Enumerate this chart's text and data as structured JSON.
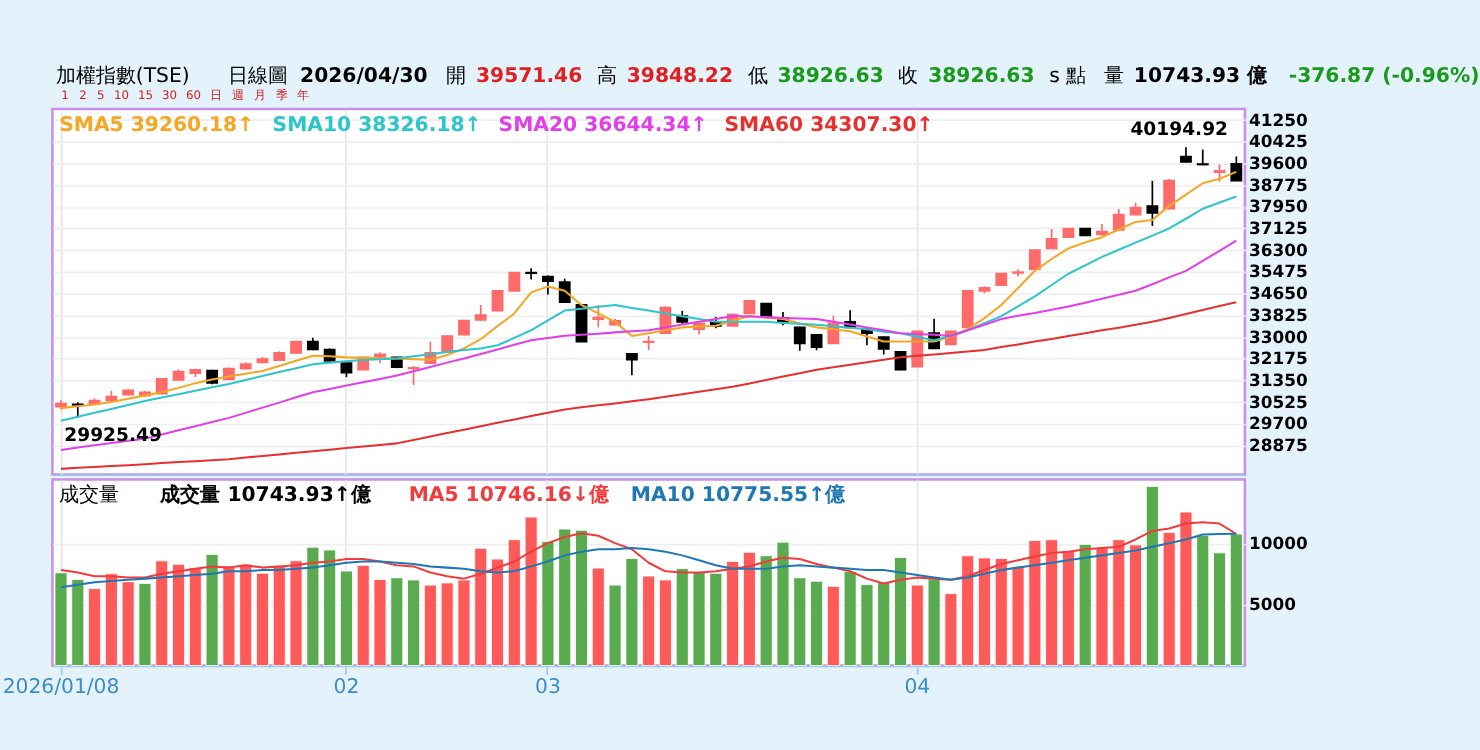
{
  "chart_data": [
    {
      "type": "candlestick",
      "title": "加權指數(TSE)",
      "annotations": [
        "日線圖",
        "2026/04/30",
        "開",
        "39571.46",
        "高",
        "39848.22",
        "低",
        "38926.63",
        "收",
        "38926.63",
        "s 點",
        "量",
        "10743.93 億",
        "-376.87 (-0.96%)",
        "1",
        "2",
        "5",
        "10",
        "15",
        "30",
        "60",
        "日",
        "週",
        "月",
        "季",
        "年",
        {
          "text": "29925.49",
          "y": 29925.49
        },
        {
          "text": "40194.92",
          "y": 40194.92
        }
      ],
      "categories": [
        "2026/01/08",
        null,
        null,
        null,
        null,
        null,
        null,
        null,
        null,
        null,
        null,
        null,
        null,
        null,
        null,
        null,
        null,
        "02",
        null,
        null,
        null,
        null,
        null,
        null,
        null,
        null,
        null,
        null,
        null,
        "03",
        null,
        null,
        null,
        null,
        null,
        null,
        null,
        null,
        null,
        null,
        null,
        null,
        null,
        null,
        null,
        null,
        null,
        null,
        null,
        null,
        null,
        "04",
        null,
        null,
        null,
        null,
        null,
        null,
        null,
        null,
        null,
        null,
        null,
        null,
        null,
        null,
        null,
        null,
        null,
        null,
        null
      ],
      "ohlc": [
        [
          30340,
          30580,
          30230,
          30450
        ],
        [
          30420,
          30500,
          29925.49,
          30400
        ],
        [
          30470,
          30650,
          30430,
          30570
        ],
        [
          30570,
          30940,
          30530,
          30720
        ],
        [
          30790,
          31000,
          30760,
          30960
        ],
        [
          30750,
          30930,
          30720,
          30880
        ],
        [
          30830,
          31420,
          30800,
          31390
        ],
        [
          31350,
          31760,
          31330,
          31670
        ],
        [
          31610,
          31780,
          31460,
          31740
        ],
        [
          31710,
          31740,
          31190,
          31240
        ],
        [
          31370,
          31820,
          31350,
          31780
        ],
        [
          31780,
          32020,
          31760,
          31950
        ],
        [
          32020,
          32230,
          31990,
          32140
        ],
        [
          32100,
          32440,
          32080,
          32380
        ],
        [
          32380,
          32830,
          32360,
          32810
        ],
        [
          32810,
          32960,
          32480,
          32510
        ],
        [
          32510,
          32550,
          32040,
          32080
        ],
        [
          31990,
          32000,
          31460,
          31630
        ],
        [
          31740,
          32230,
          31720,
          32210
        ],
        [
          32230,
          32400,
          31990,
          32320
        ],
        [
          32210,
          32230,
          31800,
          31840
        ],
        [
          31790,
          31880,
          31160,
          31810
        ],
        [
          31990,
          32810,
          31980,
          32380
        ],
        [
          32420,
          33040,
          32400,
          33020
        ],
        [
          33070,
          33630,
          33050,
          33610
        ],
        [
          33630,
          34200,
          33610,
          33820
        ],
        [
          33990,
          34760,
          33970,
          34740
        ],
        [
          34740,
          35450,
          34720,
          35430
        ],
        [
          35430,
          35600,
          35170,
          35410
        ],
        [
          35280,
          35320,
          34600,
          35110
        ],
        [
          35070,
          35200,
          34290,
          34310
        ],
        [
          34210,
          34230,
          32800,
          32810
        ],
        [
          33660,
          34200,
          33350,
          33720
        ],
        [
          33450,
          33680,
          33430,
          33600
        ],
        [
          32340,
          32360,
          31530,
          32120
        ],
        [
          32790,
          33030,
          32490,
          32810
        ],
        [
          33130,
          34160,
          33110,
          34100
        ],
        [
          33780,
          33980,
          33450,
          33560
        ],
        [
          33280,
          33580,
          33080,
          33500
        ],
        [
          33560,
          33750,
          33320,
          33410
        ],
        [
          33410,
          33880,
          33390,
          33840
        ],
        [
          33880,
          34400,
          33860,
          34360
        ],
        [
          34250,
          34270,
          33740,
          33760
        ],
        [
          33710,
          33930,
          33430,
          33560
        ],
        [
          33350,
          33370,
          32460,
          32740
        ],
        [
          33070,
          33090,
          32480,
          32600
        ],
        [
          32740,
          33790,
          32720,
          33500
        ],
        [
          33560,
          34000,
          33330,
          33350
        ],
        [
          33280,
          33300,
          32670,
          33130
        ],
        [
          32980,
          33000,
          32320,
          32530
        ],
        [
          32420,
          32440,
          31720,
          31740
        ],
        [
          31860,
          33220,
          31840,
          33200
        ],
        [
          33130,
          33680,
          32530,
          32550
        ],
        [
          32700,
          33220,
          32680,
          33200
        ],
        [
          33350,
          34760,
          33330,
          34740
        ],
        [
          34740,
          34910,
          34650,
          34850
        ],
        [
          34960,
          35410,
          34940,
          35390
        ],
        [
          35420,
          35560,
          35280,
          35450
        ],
        [
          35560,
          36310,
          35540,
          36290
        ],
        [
          36350,
          37090,
          36330,
          36720
        ],
        [
          36780,
          37130,
          36760,
          37110
        ],
        [
          37110,
          37130,
          36830,
          36850
        ],
        [
          36880,
          37280,
          36850,
          36990
        ],
        [
          37060,
          37850,
          37040,
          37640
        ],
        [
          37640,
          38090,
          37620,
          37900
        ],
        [
          37960,
          38920,
          37210,
          37700
        ],
        [
          37860,
          38990,
          37840,
          38930
        ],
        [
          39840,
          40194.92,
          39620,
          39640
        ],
        [
          39560,
          40110,
          39520,
          39540
        ],
        [
          39250,
          39540,
          38890,
          39300
        ],
        [
          39571.46,
          39848.22,
          38926.63,
          38926.63
        ]
      ],
      "colors": [
        "#ff6b6b",
        "#000000",
        "#ff6b6b",
        "#ff6b6b",
        "#ff6b6b",
        "#ff6b6b",
        "#ff6b6b",
        "#ff6b6b",
        "#ff6b6b",
        "#000000",
        "#ff6b6b",
        "#ff6b6b",
        "#ff6b6b",
        "#ff6b6b",
        "#ff6b6b",
        "#000000",
        "#000000",
        "#000000",
        "#ff6b6b",
        "#ff6b6b",
        "#000000",
        "#ff6b6b",
        "#ff6b6b",
        "#ff6b6b",
        "#ff6b6b",
        "#ff6b6b",
        "#ff6b6b",
        "#ff6b6b",
        "#000000",
        "#000000",
        "#000000",
        "#000000",
        "#ff6b6b",
        "#ff6b6b",
        "#000000",
        "#ff6b6b",
        "#ff6b6b",
        "#000000",
        "#ff6b6b",
        "#000000",
        "#ff6b6b",
        "#ff6b6b",
        "#000000",
        "#000000",
        "#000000",
        "#000000",
        "#ff6b6b",
        "#000000",
        "#000000",
        "#000000",
        "#000000",
        "#ff6b6b",
        "#000000",
        "#ff6b6b",
        "#ff6b6b",
        "#ff6b6b",
        "#ff6b6b",
        "#ff6b6b",
        "#ff6b6b",
        "#ff6b6b",
        "#ff6b6b",
        "#000000",
        "#ff6b6b",
        "#ff6b6b",
        "#ff6b6b",
        "#000000",
        "#ff6b6b",
        "#000000",
        "#000000",
        "#ff6b6b",
        "#000000"
      ],
      "series": [
        {
          "name": "SMA5 39260.18↑",
          "type": "line",
          "color": "#f5a623",
          "values": [
            30280,
            30350,
            30420,
            30510,
            30640,
            30760,
            30880,
            31050,
            31230,
            31370,
            31480,
            31590,
            31690,
            31880,
            32080,
            32270,
            32250,
            32210,
            32190,
            32180,
            32170,
            32140,
            32120,
            32300,
            32550,
            32900,
            33400,
            33880,
            34680,
            34900,
            34740,
            34200,
            33880,
            33560,
            33020,
            33130,
            33240,
            33350,
            33380,
            33410,
            33600,
            33780,
            33720,
            33670,
            33500,
            33350,
            33280,
            33200,
            33000,
            32810,
            32810,
            32810,
            32810,
            33000,
            33280,
            33700,
            34200,
            34850,
            35500,
            35950,
            36350,
            36580,
            36780,
            37070,
            37360,
            37430,
            37970,
            38400,
            38830,
            39000,
            39260.18
          ]
        },
        {
          "name": "SMA10 38326.18↑",
          "type": "line",
          "color": "#2cc5c9",
          "values": [
            29800,
            29950,
            30100,
            30250,
            30400,
            30550,
            30680,
            30810,
            30940,
            31070,
            31200,
            31350,
            31500,
            31650,
            31800,
            31950,
            32010,
            32060,
            32110,
            32140,
            32170,
            32250,
            32330,
            32410,
            32490,
            32550,
            32670,
            32950,
            33240,
            33620,
            33990,
            34060,
            34130,
            34200,
            34090,
            33990,
            33880,
            33770,
            33670,
            33560,
            33560,
            33560,
            33560,
            33520,
            33490,
            33450,
            33390,
            33340,
            33280,
            33180,
            33130,
            32990,
            32850,
            33040,
            33240,
            33510,
            33780,
            34150,
            34530,
            34960,
            35390,
            35710,
            36030,
            36300,
            36570,
            36840,
            37110,
            37480,
            37860,
            38100,
            38326.18
          ]
        },
        {
          "name": "SMA20 36644.34↑",
          "type": "line",
          "color": "#e040e8",
          "values": [
            28690,
            28780,
            28870,
            28950,
            29040,
            29120,
            29280,
            29440,
            29590,
            29750,
            29910,
            30100,
            30300,
            30490,
            30690,
            30880,
            31010,
            31140,
            31260,
            31390,
            31520,
            31680,
            31840,
            32010,
            32170,
            32340,
            32510,
            32690,
            32860,
            32950,
            33030,
            33070,
            33110,
            33160,
            33200,
            33240,
            33350,
            33460,
            33560,
            33670,
            33780,
            33760,
            33740,
            33710,
            33690,
            33670,
            33560,
            33460,
            33350,
            33240,
            33130,
            33100,
            33070,
            33020,
            33240,
            33450,
            33670,
            33790,
            33900,
            34020,
            34140,
            34290,
            34440,
            34590,
            34740,
            34990,
            35250,
            35500,
            35880,
            36260,
            36644.34
          ]
        },
        {
          "name": "SMA60 34307.30↑",
          "type": "line",
          "color": "#e53030",
          "values": [
            27970,
            28010,
            28040,
            28080,
            28110,
            28150,
            28190,
            28230,
            28260,
            28300,
            28340,
            28400,
            28460,
            28520,
            28580,
            28640,
            28700,
            28760,
            28820,
            28880,
            28940,
            29070,
            29200,
            29330,
            29460,
            29590,
            29720,
            29850,
            29980,
            30100,
            30230,
            30310,
            30390,
            30460,
            30540,
            30620,
            30710,
            30810,
            30900,
            31000,
            31090,
            31220,
            31350,
            31480,
            31610,
            31740,
            31830,
            31930,
            32020,
            32120,
            32210,
            32270,
            32320,
            32380,
            32430,
            32490,
            32600,
            32700,
            32810,
            32910,
            33020,
            33130,
            33240,
            33340,
            33450,
            33560,
            33710,
            33860,
            34010,
            34160,
            34307.3
          ]
        }
      ],
      "ylim": [
        27760,
        41650
      ],
      "yticks": [
        41250,
        40425,
        39600,
        38775,
        37950,
        37125,
        36300,
        35475,
        34650,
        33825,
        33000,
        32175,
        31350,
        30525,
        29700,
        28875
      ],
      "grid": true,
      "legend": "top left",
      "tick_labels": "y"
    },
    {
      "type": "bar",
      "title": "成交量",
      "categories": [
        "2026/01/08",
        null,
        null,
        null,
        null,
        null,
        null,
        null,
        null,
        null,
        null,
        null,
        null,
        null,
        null,
        null,
        null,
        "02",
        null,
        null,
        null,
        null,
        null,
        null,
        null,
        null,
        null,
        null,
        null,
        "03",
        null,
        null,
        null,
        null,
        null,
        null,
        null,
        null,
        null,
        null,
        null,
        null,
        null,
        null,
        null,
        null,
        null,
        null,
        null,
        null,
        null,
        "04",
        null,
        null,
        null,
        null,
        null,
        null,
        null,
        null,
        null,
        null,
        null,
        null,
        null,
        null,
        null,
        null,
        null,
        null,
        null
      ],
      "series": [
        {
          "name": "成交量 10743.93↑億",
          "type": "bar",
          "values": [
            7580,
            7030,
            6290,
            7500,
            6850,
            6710,
            8560,
            8280,
            8000,
            9070,
            8140,
            8280,
            7540,
            8190,
            8560,
            9670,
            9440,
            7720,
            8190,
            7030,
            7170,
            6990,
            6570,
            6750,
            6990,
            9580,
            8700,
            10280,
            12130,
            10140,
            11150,
            11060,
            7960,
            6570,
            8750,
            7310,
            6990,
            7920,
            7640,
            7540,
            8510,
            9250,
            8970,
            10080,
            7170,
            6890,
            6470,
            7680,
            6610,
            6800,
            8830,
            6570,
            7080,
            5880,
            8970,
            8790,
            8750,
            8100,
            10220,
            10280,
            9350,
            9900,
            9630,
            10280,
            9860,
            14630,
            10880,
            12540,
            10640,
            9210,
            10743.93
          ],
          "colors": [
            "#5aab50",
            "#5aab50",
            "#ff5a5a",
            "#ff5a5a",
            "#ff5a5a",
            "#5aab50",
            "#ff5a5a",
            "#ff5a5a",
            "#ff5a5a",
            "#5aab50",
            "#ff5a5a",
            "#ff5a5a",
            "#ff5a5a",
            "#ff5a5a",
            "#ff5a5a",
            "#5aab50",
            "#5aab50",
            "#5aab50",
            "#ff5a5a",
            "#ff5a5a",
            "#5aab50",
            "#5aab50",
            "#ff5a5a",
            "#ff5a5a",
            "#ff5a5a",
            "#ff5a5a",
            "#ff5a5a",
            "#ff5a5a",
            "#ff5a5a",
            "#5aab50",
            "#5aab50",
            "#5aab50",
            "#ff5a5a",
            "#5aab50",
            "#5aab50",
            "#ff5a5a",
            "#ff5a5a",
            "#5aab50",
            "#5aab50",
            "#5aab50",
            "#ff5a5a",
            "#ff5a5a",
            "#5aab50",
            "#5aab50",
            "#5aab50",
            "#5aab50",
            "#ff5a5a",
            "#5aab50",
            "#5aab50",
            "#5aab50",
            "#5aab50",
            "#ff5a5a",
            "#5aab50",
            "#ff5a5a",
            "#ff5a5a",
            "#ff5a5a",
            "#ff5a5a",
            "#ff5a5a",
            "#ff5a5a",
            "#ff5a5a",
            "#ff5a5a",
            "#5aab50",
            "#ff5a5a",
            "#ff5a5a",
            "#ff5a5a",
            "#5aab50",
            "#ff5a5a",
            "#ff5a5a",
            "#5aab50",
            "#5aab50",
            "#5aab50"
          ]
        },
        {
          "name": "MA5 10746.16↓億",
          "type": "line",
          "color": "#f03c3c",
          "values": [
            7800,
            7600,
            7300,
            7300,
            7200,
            7200,
            7500,
            7700,
            7900,
            8100,
            8000,
            8200,
            8000,
            8100,
            8200,
            8400,
            8500,
            8700,
            8700,
            8500,
            8200,
            8100,
            7600,
            7300,
            7100,
            7500,
            8000,
            8500,
            9300,
            10000,
            10500,
            10800,
            10600,
            10000,
            9500,
            8400,
            7700,
            7600,
            7600,
            7700,
            7900,
            8100,
            8500,
            8800,
            8700,
            8300,
            8000,
            7700,
            7100,
            6700,
            7000,
            7200,
            7100,
            7000,
            7300,
            7800,
            8300,
            8600,
            8900,
            9200,
            9300,
            9500,
            9600,
            9700,
            10300,
            11000,
            11200,
            11600,
            11700,
            11600,
            10746.16
          ]
        },
        {
          "name": "MA10 10775.55↑億",
          "type": "line",
          "color": "#1f78b4",
          "values": [
            6400,
            6600,
            6800,
            6900,
            7000,
            7100,
            7200,
            7300,
            7400,
            7500,
            7700,
            7700,
            7800,
            7800,
            7900,
            8000,
            8200,
            8400,
            8500,
            8500,
            8400,
            8300,
            8100,
            8000,
            7900,
            7700,
            7600,
            7700,
            8100,
            8500,
            9000,
            9300,
            9500,
            9500,
            9600,
            9500,
            9300,
            9000,
            8600,
            8200,
            7900,
            7900,
            7900,
            8100,
            8200,
            8100,
            8000,
            7900,
            7800,
            7800,
            7600,
            7400,
            7200,
            7000,
            7200,
            7500,
            7800,
            8000,
            8200,
            8400,
            8600,
            8800,
            9000,
            9200,
            9400,
            9700,
            10000,
            10300,
            10700,
            10750,
            10775.55
          ]
        }
      ],
      "ylim": [
        0,
        15200
      ],
      "yticks": [
        5000,
        10000
      ],
      "grid": true,
      "legend": "top left"
    }
  ]
}
